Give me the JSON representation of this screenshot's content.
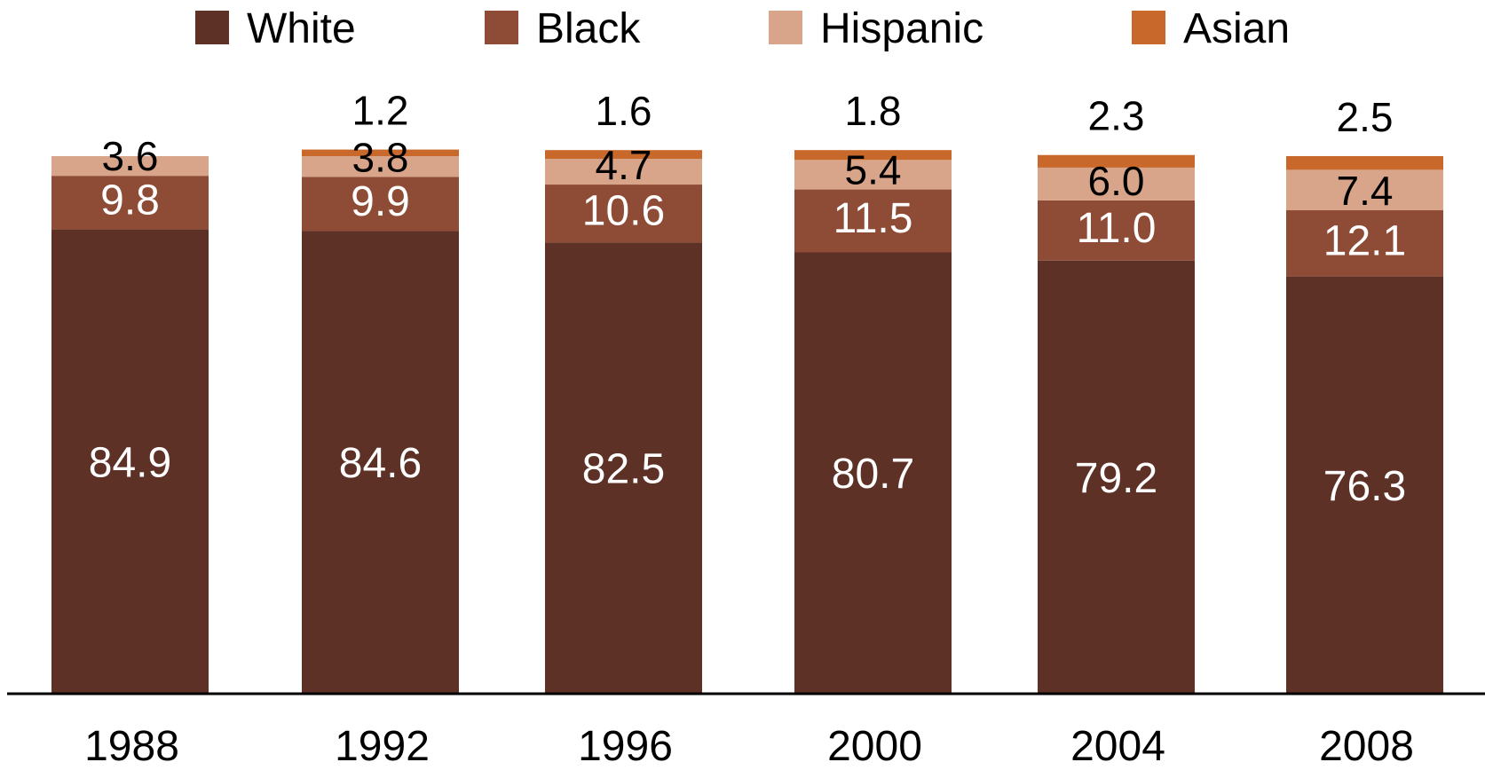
{
  "chart_data": {
    "type": "bar",
    "stacked": true,
    "title": "",
    "xlabel": "",
    "ylabel": "",
    "categories": [
      "1988",
      "1992",
      "1996",
      "2000",
      "2004",
      "2008"
    ],
    "series": [
      {
        "name": "White",
        "color": "#5e3126",
        "label_color": "#ffffff",
        "values": [
          84.9,
          84.6,
          82.5,
          80.7,
          79.2,
          76.3
        ]
      },
      {
        "name": "Black",
        "color": "#8e4b36",
        "label_color": "#ffffff",
        "values": [
          9.8,
          9.9,
          10.6,
          11.5,
          11.0,
          12.1
        ]
      },
      {
        "name": "Hispanic",
        "color": "#d8a58b",
        "label_color": "#000000",
        "values": [
          3.6,
          3.8,
          4.7,
          5.4,
          6.0,
          7.4
        ]
      },
      {
        "name": "Asian",
        "color": "#c8682a",
        "label_color": "#000000",
        "values": [
          null,
          1.2,
          1.6,
          1.8,
          2.3,
          2.5
        ]
      }
    ],
    "data_labels": [
      [
        "84.9",
        "84.6",
        "82.5",
        "80.7",
        "79.2",
        "76.3"
      ],
      [
        "9.8",
        "9.9",
        "10.6",
        "11.5",
        "11.0",
        "12.1"
      ],
      [
        "3.6",
        "3.8",
        "4.7",
        "5.4",
        "6.0",
        "7.4"
      ],
      [
        "",
        "1.2",
        "1.6",
        "1.8",
        "2.3",
        "2.5"
      ]
    ],
    "legend_position": "top",
    "grid": false,
    "y_axis_visible": false
  }
}
